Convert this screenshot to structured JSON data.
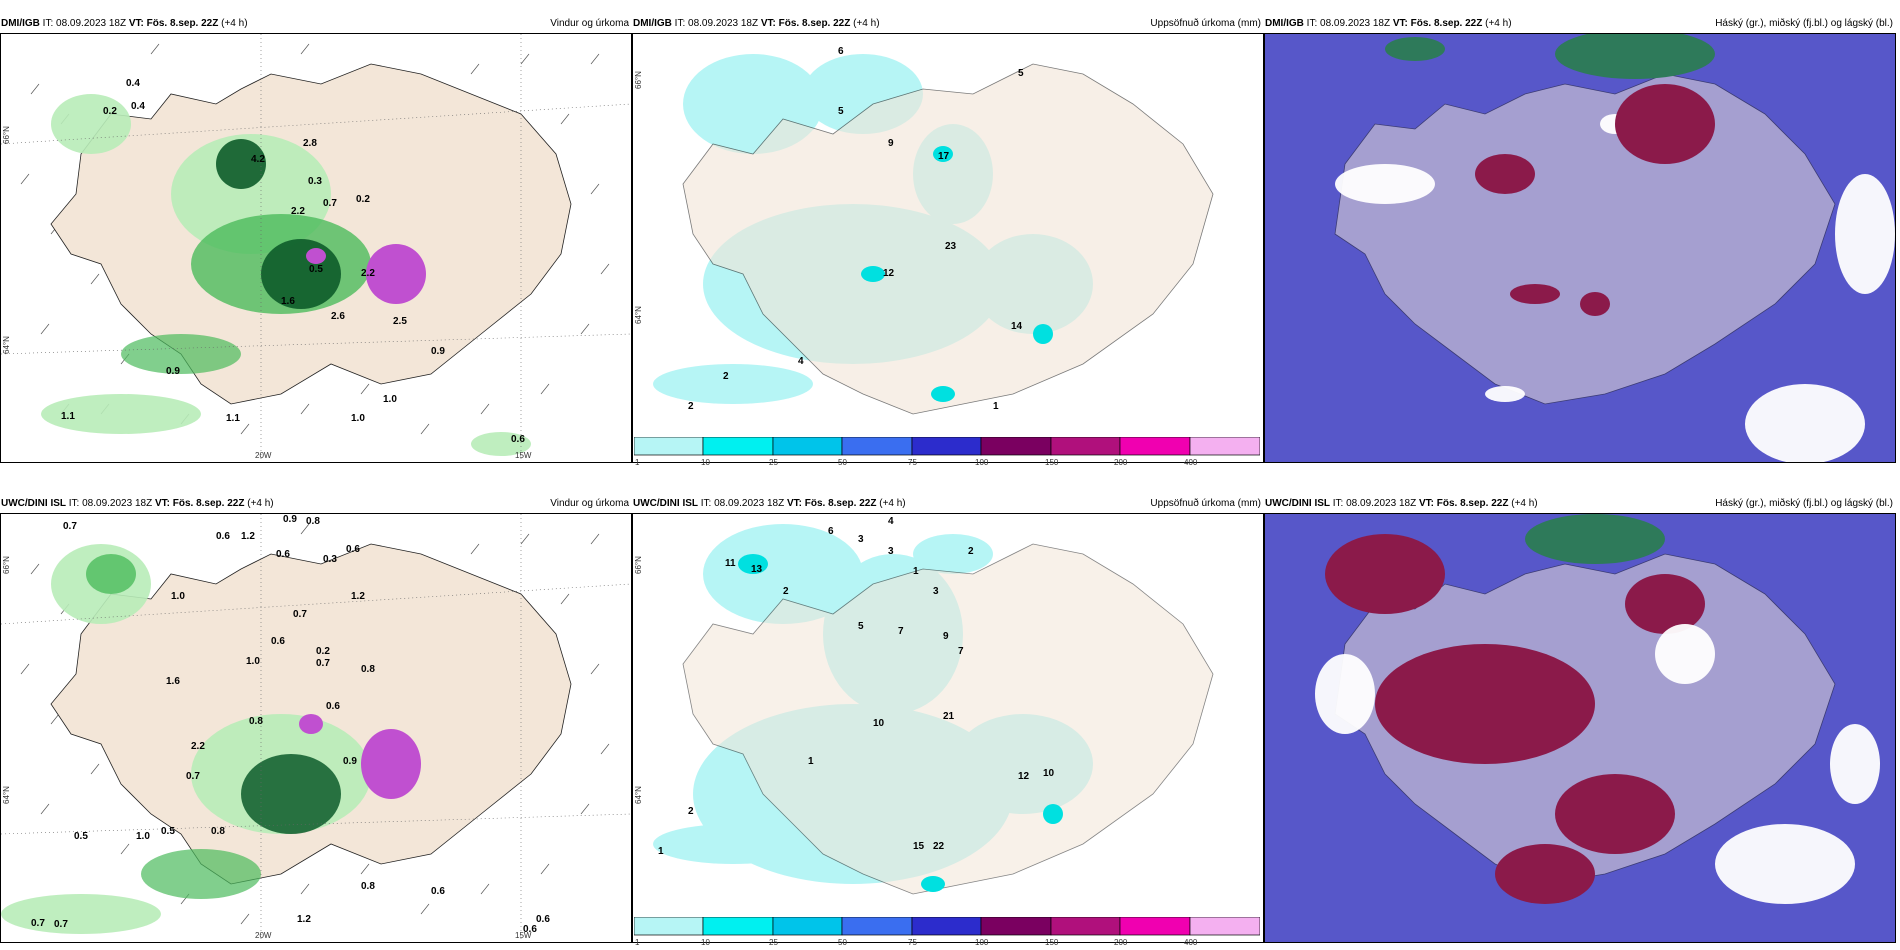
{
  "panels": [
    {
      "id": "igb-wind",
      "model": "DMI/IGB",
      "it_label": "IT:",
      "it_value": "08.09.2023 18Z",
      "vt_label": "VT:",
      "vt_value": "Fös. 8.sep. 22Z",
      "lead": "(+4 h)",
      "title": "Vindur og úrkoma",
      "axis_left": [
        "66°N",
        "64°N"
      ],
      "axis_bottom": [
        "20W",
        "15W"
      ],
      "values": [
        "0.4",
        "0.4",
        "0.2",
        "4.2",
        "2.8",
        "0.3",
        "0.7",
        "0.2",
        "2.2",
        "0.5",
        "2.2",
        "2.6",
        "2.5",
        "0.9",
        "1.1",
        "1.0",
        "1.0",
        "0.6",
        "1.1",
        "1.6",
        "0.9"
      ]
    },
    {
      "id": "igb-precip",
      "model": "DMI/IGB",
      "it_label": "IT:",
      "it_value": "08.09.2023 18Z",
      "vt_label": "VT:",
      "vt_value": "Fös. 8.sep. 22Z",
      "lead": "(+4 h)",
      "title": "Uppsöfnuð úrkoma (mm)",
      "axis_left": [
        "66°N",
        "64°N"
      ],
      "values": [
        "6",
        "5",
        "5",
        "9",
        "17",
        "12",
        "23",
        "14",
        "2",
        "2",
        "4",
        "1"
      ],
      "colorbar_ticks": [
        "1",
        "10",
        "25",
        "50",
        "75",
        "100",
        "150",
        "200",
        "400"
      ]
    },
    {
      "id": "igb-cloud",
      "model": "DMI/IGB",
      "it_label": "IT:",
      "it_value": "08.09.2023 18Z",
      "vt_label": "VT:",
      "vt_value": "Fös. 8.sep. 22Z",
      "lead": "(+4 h)",
      "title": "Háský (gr.), miðský (fj.bl.) og lágský (bl.)"
    },
    {
      "id": "uwc-wind",
      "model": "UWC/DINI ISL",
      "it_label": "IT:",
      "it_value": "08.09.2023 18Z",
      "vt_label": "VT:",
      "vt_value": "Fös. 8.sep. 22Z",
      "lead": "(+4 h)",
      "title": "Vindur og úrkoma",
      "axis_left": [
        "66°N",
        "64°N"
      ],
      "axis_bottom": [
        "20W",
        "15W"
      ],
      "values": [
        "0.7",
        "0.6",
        "1.2",
        "0.9",
        "0.8",
        "0.6",
        "0.6",
        "0.3",
        "1.0",
        "1.2",
        "0.7",
        "0.2",
        "0.7",
        "0.8",
        "1.6",
        "0.6",
        "2.2",
        "0.7",
        "1.0",
        "0.5",
        "0.5",
        "0.8",
        "0.6",
        "0.8",
        "0.6",
        "0.7",
        "0.7",
        "1.2",
        "0.6",
        "0.6",
        "0.8",
        "0.9",
        "1.0"
      ]
    },
    {
      "id": "uwc-precip",
      "model": "UWC/DINI ISL",
      "it_label": "IT:",
      "it_value": "08.09.2023 18Z",
      "vt_label": "VT:",
      "vt_value": "Fös. 8.sep. 22Z",
      "lead": "(+4 h)",
      "title": "Uppsöfnuð úrkoma (mm)",
      "axis_left": [
        "66°N",
        "64°N"
      ],
      "values": [
        "6",
        "3",
        "4",
        "3",
        "11",
        "13",
        "2",
        "3",
        "1",
        "2",
        "5",
        "7",
        "9",
        "7",
        "10",
        "21",
        "12",
        "10",
        "2",
        "1",
        "15",
        "22",
        "1"
      ],
      "colorbar_ticks": [
        "1",
        "10",
        "25",
        "50",
        "75",
        "100",
        "150",
        "200",
        "400"
      ]
    },
    {
      "id": "uwc-cloud",
      "model": "UWC/DINI ISL",
      "it_label": "IT:",
      "it_value": "08.09.2023 18Z",
      "vt_label": "VT:",
      "vt_value": "Fös. 8.sep. 22Z",
      "lead": "(+4 h)",
      "title": "Háský (gr.), miðský (fj.bl.) og lágský (bl.)"
    }
  ],
  "colors": {
    "land": "#f3e6d8",
    "sea_wind": "#ffffff",
    "precip_light": "#b6f5f5",
    "precip_mid": "#00e0e0",
    "green_light": "#b8ecb8",
    "green_mid": "#4cbb5c",
    "green_dark": "#0d5c2a",
    "magenta": "#c050d0",
    "cloud_low": "#5757c9",
    "cloud_mid": "#8b1a4a",
    "cloud_high": "#2e7a5a"
  },
  "colorbar_colors": [
    "#b6f5f5",
    "#00f0f0",
    "#00c4ea",
    "#3a6ef0",
    "#2c2ccc",
    "#7a0060",
    "#b0107c",
    "#f000b0",
    "#f4b0f0"
  ]
}
